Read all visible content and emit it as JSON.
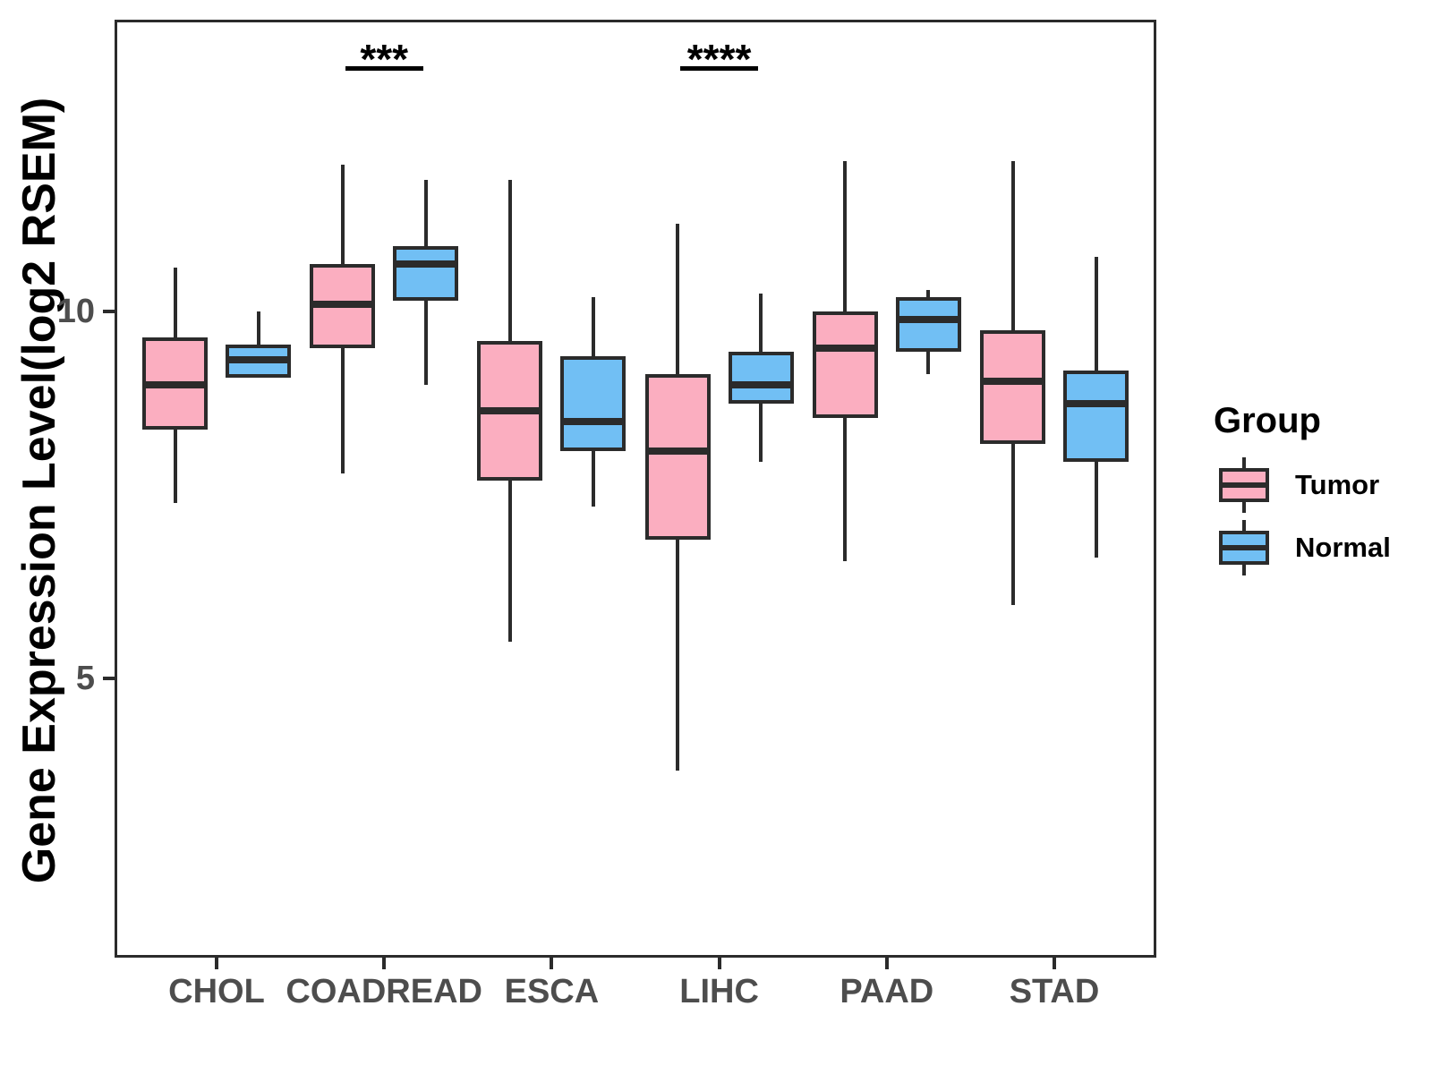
{
  "chart_data": {
    "type": "boxplot",
    "orientation": "vertical",
    "title": "",
    "ylabel": "Gene Expression Level(log2 RSEM)",
    "xlabel": "",
    "categories": [
      "CHOL",
      "COADREAD",
      "ESCA",
      "LIHC",
      "PAAD",
      "STAD"
    ],
    "y_axis": {
      "ticks": [
        5,
        10
      ],
      "range": [
        1.2,
        13.98
      ],
      "gridlines": false
    },
    "colors": {
      "tumor_fill": "#FBAEC0",
      "normal_fill": "#71BFF4",
      "box_outline": "#2B2B2B",
      "tick_label": "#4D4D4D",
      "axis_title": "#000000"
    },
    "legend": {
      "title": "Group",
      "position": "right",
      "entries": [
        {
          "label": "Tumor",
          "color": "#FBAEC0"
        },
        {
          "label": "Normal",
          "color": "#71BFF4"
        }
      ]
    },
    "series": [
      {
        "name": "Tumor",
        "fill": "#FBAEC0",
        "boxes": [
          {
            "category": "CHOL",
            "whisker_low": 7.4,
            "q1": 8.4,
            "median": 9.0,
            "q3": 9.65,
            "whisker_high": 10.6
          },
          {
            "category": "COADREAD",
            "whisker_low": 7.8,
            "q1": 9.5,
            "median": 10.1,
            "q3": 10.65,
            "whisker_high": 12.0
          },
          {
            "category": "ESCA",
            "whisker_low": 5.5,
            "q1": 7.7,
            "median": 8.65,
            "q3": 9.6,
            "whisker_high": 11.8
          },
          {
            "category": "LIHC",
            "whisker_low": 3.75,
            "q1": 6.9,
            "median": 8.1,
            "q3": 9.15,
            "whisker_high": 11.2
          },
          {
            "category": "PAAD",
            "whisker_low": 6.6,
            "q1": 8.55,
            "median": 9.5,
            "q3": 10.0,
            "whisker_high": 12.05
          },
          {
            "category": "STAD",
            "whisker_low": 6.0,
            "q1": 8.2,
            "median": 9.05,
            "q3": 9.75,
            "whisker_high": 12.05
          }
        ]
      },
      {
        "name": "Normal",
        "fill": "#71BFF4",
        "boxes": [
          {
            "category": "CHOL",
            "whisker_low": 9.1,
            "q1": 9.1,
            "median": 9.35,
            "q3": 9.55,
            "whisker_high": 10.0
          },
          {
            "category": "COADREAD",
            "whisker_low": 9.0,
            "q1": 10.15,
            "median": 10.65,
            "q3": 10.9,
            "whisker_high": 11.8
          },
          {
            "category": "ESCA",
            "whisker_low": 7.35,
            "q1": 8.1,
            "median": 8.5,
            "q3": 9.4,
            "whisker_high": 10.2
          },
          {
            "category": "LIHC",
            "whisker_low": 7.95,
            "q1": 8.75,
            "median": 9.0,
            "q3": 9.45,
            "whisker_high": 10.25
          },
          {
            "category": "PAAD",
            "whisker_low": 9.15,
            "q1": 9.45,
            "median": 9.9,
            "q3": 10.2,
            "whisker_high": 10.3
          },
          {
            "category": "STAD",
            "whisker_low": 6.65,
            "q1": 7.95,
            "median": 8.75,
            "q3": 9.2,
            "whisker_high": 10.75
          }
        ]
      }
    ],
    "annotations": [
      {
        "category": "COADREAD",
        "text": "***",
        "bar_y": 13.35
      },
      {
        "category": "LIHC",
        "text": "****",
        "bar_y": 13.35
      }
    ]
  }
}
